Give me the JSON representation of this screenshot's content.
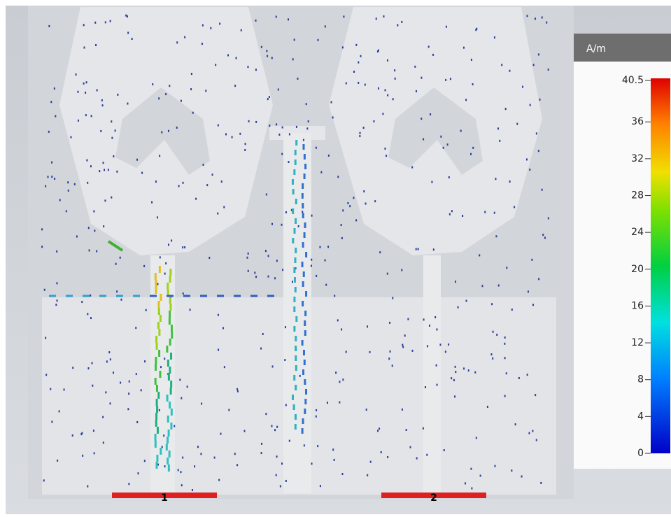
{
  "legend": {
    "unit": "A/m",
    "ticks": [
      0,
      4,
      8,
      12,
      16,
      20,
      24,
      28,
      32,
      36,
      40.5
    ]
  },
  "ports": [
    {
      "label": "1"
    },
    {
      "label": "2"
    }
  ]
}
